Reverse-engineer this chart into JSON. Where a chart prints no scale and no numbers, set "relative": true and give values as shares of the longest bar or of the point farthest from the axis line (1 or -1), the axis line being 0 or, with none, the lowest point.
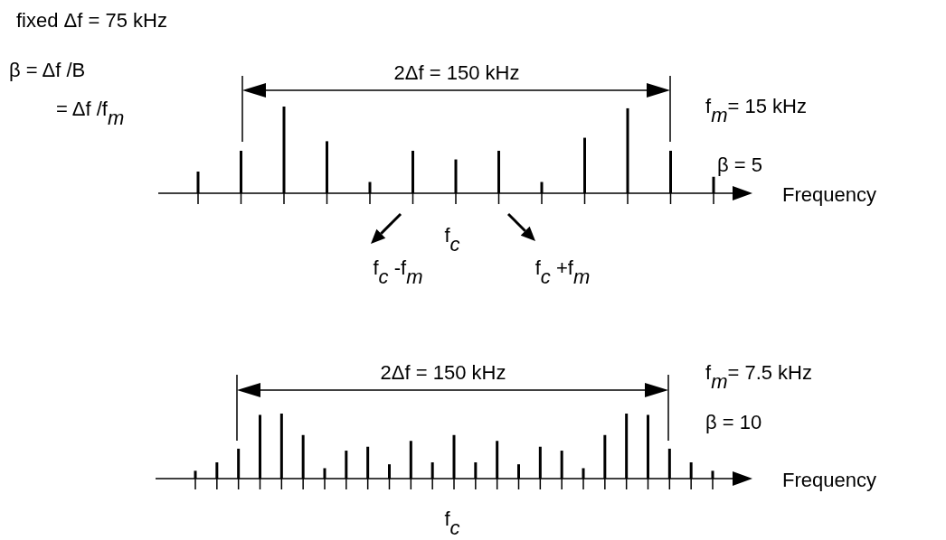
{
  "chart_data": [
    {
      "type": "bar",
      "relative": true,
      "xlabel": "Frequency",
      "categories": [
        null,
        null,
        null,
        null,
        null,
        null,
        null,
        null,
        null,
        null,
        null,
        null,
        null
      ],
      "series": [
        {
          "color": "#000000",
          "values": [
            0.25,
            0.49,
            1,
            0.6,
            0.13,
            0.49,
            0.39,
            0.49,
            0.13,
            0.64,
            0.98,
            0.49,
            0.19
          ]
        }
      ],
      "annotations": [
        "fixed Δf = 75 kHz",
        "β = Δf /B",
        "= Δf /f$_{m}$",
        "2Δf = 150 kHz",
        "f$_{m}$= 15 kHz",
        "β = 5",
        "f$_{c}$",
        "f$_{c}$ -f$_{m}$",
        "f$_{c}$ +f$_{m}$"
      ]
    },
    {
      "type": "bar",
      "relative": true,
      "xlabel": "Frequency",
      "categories": [
        null,
        null,
        null,
        null,
        null,
        null,
        null,
        null,
        null,
        null,
        null,
        null,
        null,
        null,
        null,
        null,
        null,
        null,
        null,
        null,
        null,
        null,
        null,
        null,
        null
      ],
      "series": [
        {
          "color": "#000000",
          "values": [
            0.12,
            0.25,
            0.46,
            0.98,
            1,
            0.67,
            0.16,
            0.43,
            0.49,
            0.22,
            0.58,
            0.25,
            0.67,
            0.25,
            0.58,
            0.22,
            0.49,
            0.43,
            0.16,
            0.67,
            1,
            0.98,
            0.46,
            0.25,
            0.12
          ]
        }
      ],
      "annotations": [
        "2Δf = 150 kHz",
        "f$_{m}$= 7.5 kHz",
        "β = 10",
        "f$_{c}$"
      ]
    }
  ]
}
